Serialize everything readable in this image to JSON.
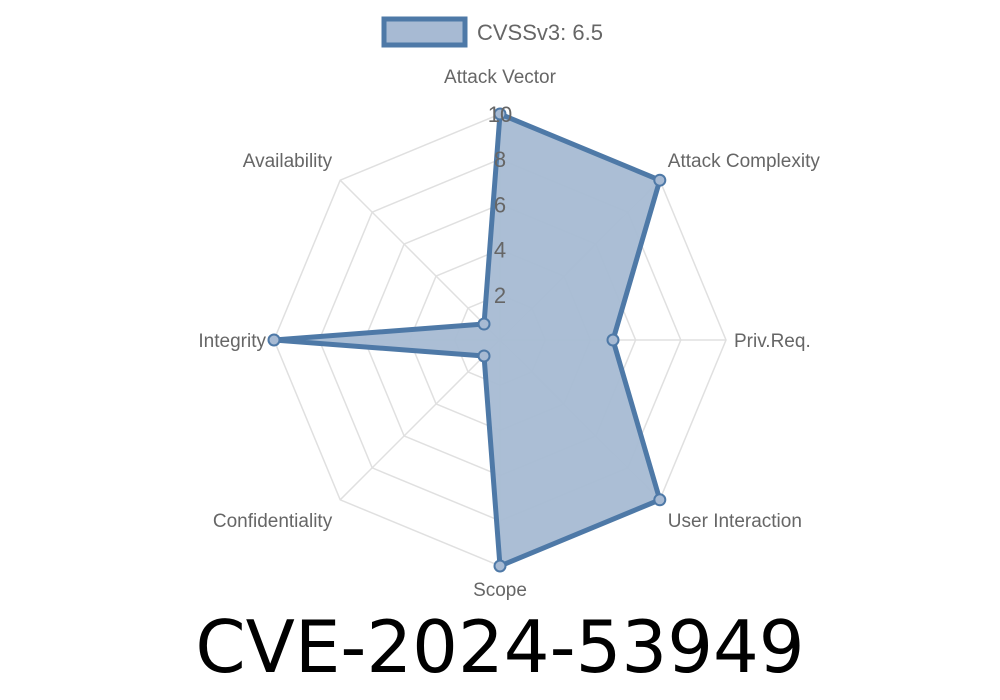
{
  "chart_data": {
    "type": "radar",
    "title": "CVE-2024-53949",
    "legend": {
      "label": "CVSSv3: 6.5",
      "placement": "top"
    },
    "axes": [
      "Attack Vector",
      "Attack Complexity",
      "Priv.Req.",
      "User Interaction",
      "Scope",
      "Confidentiality",
      "Integrity",
      "Availability"
    ],
    "series": [
      {
        "name": "CVSSv3: 6.5",
        "values": [
          10,
          10,
          5,
          10,
          10,
          1,
          10,
          1
        ]
      }
    ],
    "rlim": [
      0,
      10
    ],
    "ticks": [
      "2",
      "4",
      "6",
      "8",
      "10"
    ],
    "grid": true,
    "colors": {
      "line": "#4e79a7",
      "fill": "#a7bad3",
      "grid": "#e0e0e0",
      "label": "#666666"
    }
  }
}
